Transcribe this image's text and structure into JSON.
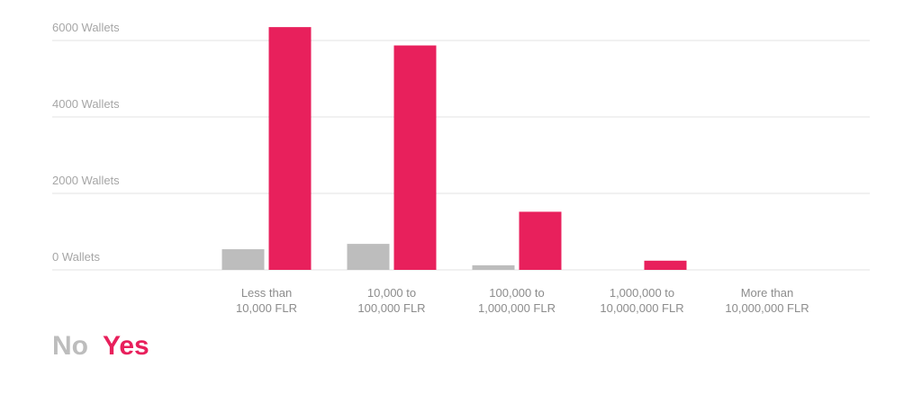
{
  "chart_data": {
    "type": "bar",
    "categories": [
      [
        "Less than",
        "10,000 FLR"
      ],
      [
        "10,000 to",
        "100,000 FLR"
      ],
      [
        "100,000 to",
        "1,000,000 FLR"
      ],
      [
        "1,000,000 to",
        "10,000,000 FLR"
      ],
      [
        "More than",
        "10,000,000 FLR"
      ]
    ],
    "series": [
      {
        "name": "No",
        "color": "#bdbdbd",
        "values": [
          540,
          680,
          120,
          0,
          0
        ]
      },
      {
        "name": "Yes",
        "color": "#e8205c",
        "values": [
          6350,
          5870,
          1520,
          240,
          0
        ]
      }
    ],
    "yticks": [
      {
        "value": 0,
        "label": "0 Wallets"
      },
      {
        "value": 2000,
        "label": "2000 Wallets"
      },
      {
        "value": 4000,
        "label": "4000 Wallets"
      },
      {
        "value": 6000,
        "label": "6000 Wallets"
      }
    ],
    "ylim": [
      0,
      6000
    ],
    "grid": true,
    "legend_position": "bottom-left"
  }
}
